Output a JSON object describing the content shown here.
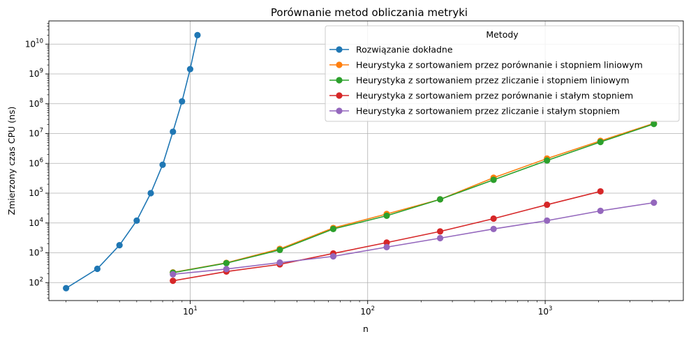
{
  "chart_data": {
    "type": "line",
    "title": "Porównanie metod obliczania metryki",
    "xlabel": "n",
    "ylabel": "Zmierzony czas CPU (ns)",
    "xscale": "log",
    "yscale": "log",
    "xlim": [
      1.6,
      6000
    ],
    "ylim": [
      25,
      60000000000
    ],
    "grid": true,
    "legend": {
      "title": "Metody",
      "placement": "top-right"
    },
    "x_ticks": [
      {
        "base": "10",
        "exp": "1",
        "value": 10
      },
      {
        "base": "10",
        "exp": "2",
        "value": 100
      },
      {
        "base": "10",
        "exp": "3",
        "value": 1000
      }
    ],
    "y_ticks": [
      {
        "base": "10",
        "exp": "2",
        "value": 100
      },
      {
        "base": "10",
        "exp": "3",
        "value": 1000
      },
      {
        "base": "10",
        "exp": "4",
        "value": 10000
      },
      {
        "base": "10",
        "exp": "5",
        "value": 100000
      },
      {
        "base": "10",
        "exp": "6",
        "value": 1000000
      },
      {
        "base": "10",
        "exp": "7",
        "value": 10000000
      },
      {
        "base": "10",
        "exp": "8",
        "value": 100000000
      },
      {
        "base": "10",
        "exp": "9",
        "value": 1000000000
      },
      {
        "base": "10",
        "exp": "10",
        "value": 10000000000
      }
    ],
    "series": [
      {
        "name": "Rozwiązanie dokładne",
        "color": "#1f77b4",
        "x": [
          2,
          3,
          4,
          5,
          6,
          7,
          8,
          9,
          10,
          11
        ],
        "y": [
          65,
          290,
          1800,
          12000,
          100000,
          900000,
          11500000,
          120000000,
          1450000000,
          20000000000
        ]
      },
      {
        "name": "Heurystyka z sortowaniem przez porównanie i stopniem liniowym",
        "color": "#ff7f0e",
        "x": [
          8,
          16,
          32,
          64,
          128,
          256,
          512,
          1024,
          2048,
          4096
        ],
        "y": [
          220,
          460,
          1350,
          6800,
          20000,
          62000,
          330000,
          1450000,
          5700000,
          22000000
        ]
      },
      {
        "name": "Heurystyka z sortowaniem przez zliczanie i stopniem liniowym",
        "color": "#2ca02c",
        "x": [
          8,
          16,
          32,
          64,
          128,
          256,
          512,
          1024,
          2048,
          4096
        ],
        "y": [
          215,
          450,
          1250,
          6300,
          17500,
          62000,
          280000,
          1250000,
          5200000,
          21000000
        ]
      },
      {
        "name": "Heurystyka z sortowaniem przez porównanie i stałym stopniem",
        "color": "#d62728",
        "x": [
          8,
          16,
          32,
          64,
          128,
          256,
          512,
          1024,
          2048
        ],
        "y": [
          115,
          235,
          410,
          950,
          2200,
          5200,
          14000,
          41000,
          115000
        ]
      },
      {
        "name": "Heurystyka z sortowaniem przez zliczanie i stałym stopniem",
        "color": "#9467bd",
        "x": [
          8,
          16,
          32,
          64,
          128,
          256,
          512,
          1024,
          2048,
          4096
        ],
        "y": [
          190,
          285,
          470,
          760,
          1550,
          3100,
          6300,
          12000,
          25500,
          48000
        ]
      }
    ]
  }
}
